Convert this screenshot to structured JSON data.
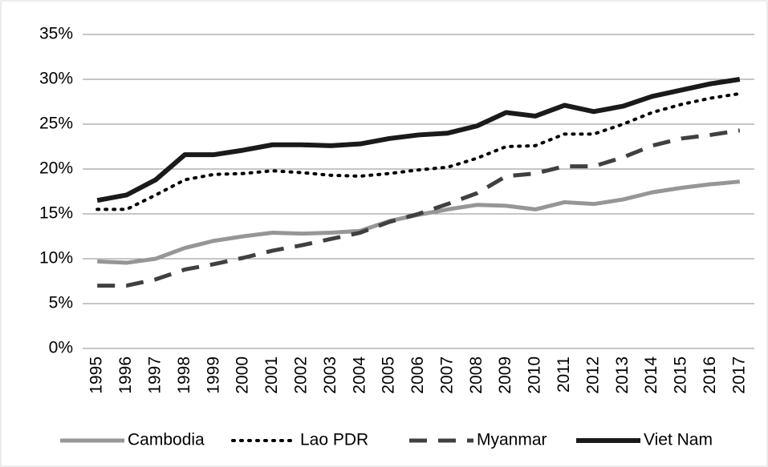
{
  "chart_data": {
    "type": "line",
    "categories": [
      "1995",
      "1996",
      "1997",
      "1998",
      "1999",
      "2000",
      "2001",
      "2002",
      "2003",
      "2004",
      "2005",
      "2006",
      "2007",
      "2008",
      "2009",
      "2010",
      "2011",
      "2012",
      "2013",
      "2014",
      "2015",
      "2016",
      "2017"
    ],
    "series": [
      {
        "name": "Cambodia",
        "color": "#969696",
        "dash": "solid",
        "values": [
          9.7,
          9.55,
          10,
          11.2,
          12,
          12.5,
          12.9,
          12.8,
          12.9,
          13.1,
          14.2,
          14.9,
          15.5,
          16,
          15.9,
          15.5,
          16.3,
          16.1,
          16.6,
          17.4,
          17.9,
          18.3,
          18.6
        ]
      },
      {
        "name": "Lao PDR",
        "color": "#000000",
        "dash": "dotted",
        "values": [
          15.5,
          15.5,
          17.1,
          18.8,
          19.4,
          19.5,
          19.8,
          19.6,
          19.3,
          19.2,
          19.5,
          19.9,
          20.2,
          21.2,
          22.5,
          22.6,
          23.9,
          23.9,
          25,
          26.3,
          27.2,
          27.9,
          28.4
        ]
      },
      {
        "name": "Myanmar",
        "color": "#404040",
        "dash": "dashed",
        "values": [
          7,
          7,
          7.7,
          8.8,
          9.4,
          10.1,
          10.9,
          11.5,
          12.2,
          12.9,
          14.1,
          15,
          16.1,
          17.3,
          19.2,
          19.5,
          20.3,
          20.3,
          21.3,
          22.6,
          23.4,
          23.8,
          24.3
        ]
      },
      {
        "name": "Viet Nam",
        "color": "#1a1a1a",
        "dash": "solid",
        "values": [
          16.5,
          17.1,
          18.8,
          21.6,
          21.6,
          22.1,
          22.7,
          22.7,
          22.6,
          22.8,
          23.4,
          23.8,
          24,
          24.8,
          26.3,
          25.9,
          27.1,
          26.4,
          27,
          28.1,
          28.8,
          29.5,
          30
        ]
      }
    ],
    "ylim": [
      0,
      35
    ],
    "yticks": [
      {
        "value": 0,
        "label": "0%"
      },
      {
        "value": 5,
        "label": "5%"
      },
      {
        "value": 10,
        "label": "10%"
      },
      {
        "value": 15,
        "label": "15%"
      },
      {
        "value": 20,
        "label": "20%"
      },
      {
        "value": 25,
        "label": "25%"
      },
      {
        "value": 30,
        "label": "30%"
      },
      {
        "value": 35,
        "label": "35%"
      }
    ],
    "grid": true,
    "legend": "bottom"
  }
}
